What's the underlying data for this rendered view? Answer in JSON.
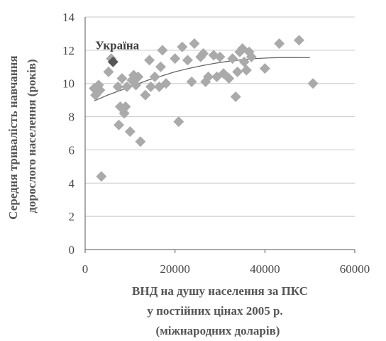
{
  "chart_data": {
    "type": "scatter",
    "title": "",
    "xlabel_lines": [
      "ВНД на душу населення за ПКС",
      "у постійних цінах 2005 р.",
      "(міжнародних доларів)"
    ],
    "ylabel_lines": [
      "Середня тривалість навчання",
      "дорослого населення  (років)"
    ],
    "xlim": [
      0,
      60000
    ],
    "ylim": [
      0,
      14
    ],
    "xticks": [
      "0",
      "20000",
      "40000",
      "60000"
    ],
    "yticks": [
      "0",
      "2",
      "4",
      "6",
      "8",
      "10",
      "12",
      "14"
    ],
    "grid": "horizontal",
    "marker_color": "#aaaaaa",
    "highlight_color": "#555555",
    "trend_color": "#666666",
    "highlight": {
      "label": "Україна",
      "x": 6200,
      "y": 11.3
    },
    "points": [
      {
        "x": 2000,
        "y": 9.7
      },
      {
        "x": 2300,
        "y": 9.3
      },
      {
        "x": 3000,
        "y": 9.9
      },
      {
        "x": 3300,
        "y": 9.6
      },
      {
        "x": 3600,
        "y": 4.4
      },
      {
        "x": 5200,
        "y": 10.7
      },
      {
        "x": 5800,
        "y": 11.5
      },
      {
        "x": 7300,
        "y": 9.8
      },
      {
        "x": 7500,
        "y": 7.5
      },
      {
        "x": 7800,
        "y": 8.6
      },
      {
        "x": 8200,
        "y": 10.3
      },
      {
        "x": 8700,
        "y": 8.2
      },
      {
        "x": 9000,
        "y": 8.6
      },
      {
        "x": 9300,
        "y": 9.8
      },
      {
        "x": 10000,
        "y": 7.1
      },
      {
        "x": 10400,
        "y": 10.2
      },
      {
        "x": 10800,
        "y": 10.5
      },
      {
        "x": 11300,
        "y": 9.9
      },
      {
        "x": 11800,
        "y": 10.4
      },
      {
        "x": 12300,
        "y": 6.5
      },
      {
        "x": 13400,
        "y": 9.3
      },
      {
        "x": 14300,
        "y": 11.4
      },
      {
        "x": 14600,
        "y": 9.8
      },
      {
        "x": 15500,
        "y": 10.4
      },
      {
        "x": 16500,
        "y": 9.8
      },
      {
        "x": 16800,
        "y": 11.0
      },
      {
        "x": 17200,
        "y": 12.0
      },
      {
        "x": 18000,
        "y": 10.0
      },
      {
        "x": 20000,
        "y": 11.5
      },
      {
        "x": 20800,
        "y": 7.7
      },
      {
        "x": 21600,
        "y": 12.2
      },
      {
        "x": 22800,
        "y": 11.4
      },
      {
        "x": 23700,
        "y": 10.1
      },
      {
        "x": 24300,
        "y": 12.4
      },
      {
        "x": 25700,
        "y": 11.6
      },
      {
        "x": 26300,
        "y": 11.8
      },
      {
        "x": 26800,
        "y": 10.1
      },
      {
        "x": 27400,
        "y": 10.4
      },
      {
        "x": 28600,
        "y": 11.7
      },
      {
        "x": 29300,
        "y": 10.4
      },
      {
        "x": 30000,
        "y": 11.6
      },
      {
        "x": 30800,
        "y": 10.6
      },
      {
        "x": 32000,
        "y": 10.3
      },
      {
        "x": 32800,
        "y": 11.5
      },
      {
        "x": 33500,
        "y": 9.2
      },
      {
        "x": 33900,
        "y": 10.7
      },
      {
        "x": 34400,
        "y": 11.9
      },
      {
        "x": 35000,
        "y": 12.1
      },
      {
        "x": 35400,
        "y": 11.3
      },
      {
        "x": 35900,
        "y": 10.8
      },
      {
        "x": 36500,
        "y": 11.9
      },
      {
        "x": 37000,
        "y": 11.6
      },
      {
        "x": 40000,
        "y": 10.9
      },
      {
        "x": 43200,
        "y": 12.4
      },
      {
        "x": 47600,
        "y": 12.6
      },
      {
        "x": 50700,
        "y": 10.0
      }
    ],
    "trend": [
      {
        "x": 2000,
        "y": 8.95
      },
      {
        "x": 5000,
        "y": 9.3
      },
      {
        "x": 8000,
        "y": 9.6
      },
      {
        "x": 11000,
        "y": 9.9
      },
      {
        "x": 14000,
        "y": 10.2
      },
      {
        "x": 17000,
        "y": 10.45
      },
      {
        "x": 20000,
        "y": 10.7
      },
      {
        "x": 23000,
        "y": 10.9
      },
      {
        "x": 26000,
        "y": 11.07
      },
      {
        "x": 29000,
        "y": 11.22
      },
      {
        "x": 32000,
        "y": 11.34
      },
      {
        "x": 35000,
        "y": 11.43
      },
      {
        "x": 38000,
        "y": 11.5
      },
      {
        "x": 41000,
        "y": 11.54
      },
      {
        "x": 44000,
        "y": 11.56
      },
      {
        "x": 47000,
        "y": 11.56
      },
      {
        "x": 50000,
        "y": 11.55
      }
    ]
  }
}
